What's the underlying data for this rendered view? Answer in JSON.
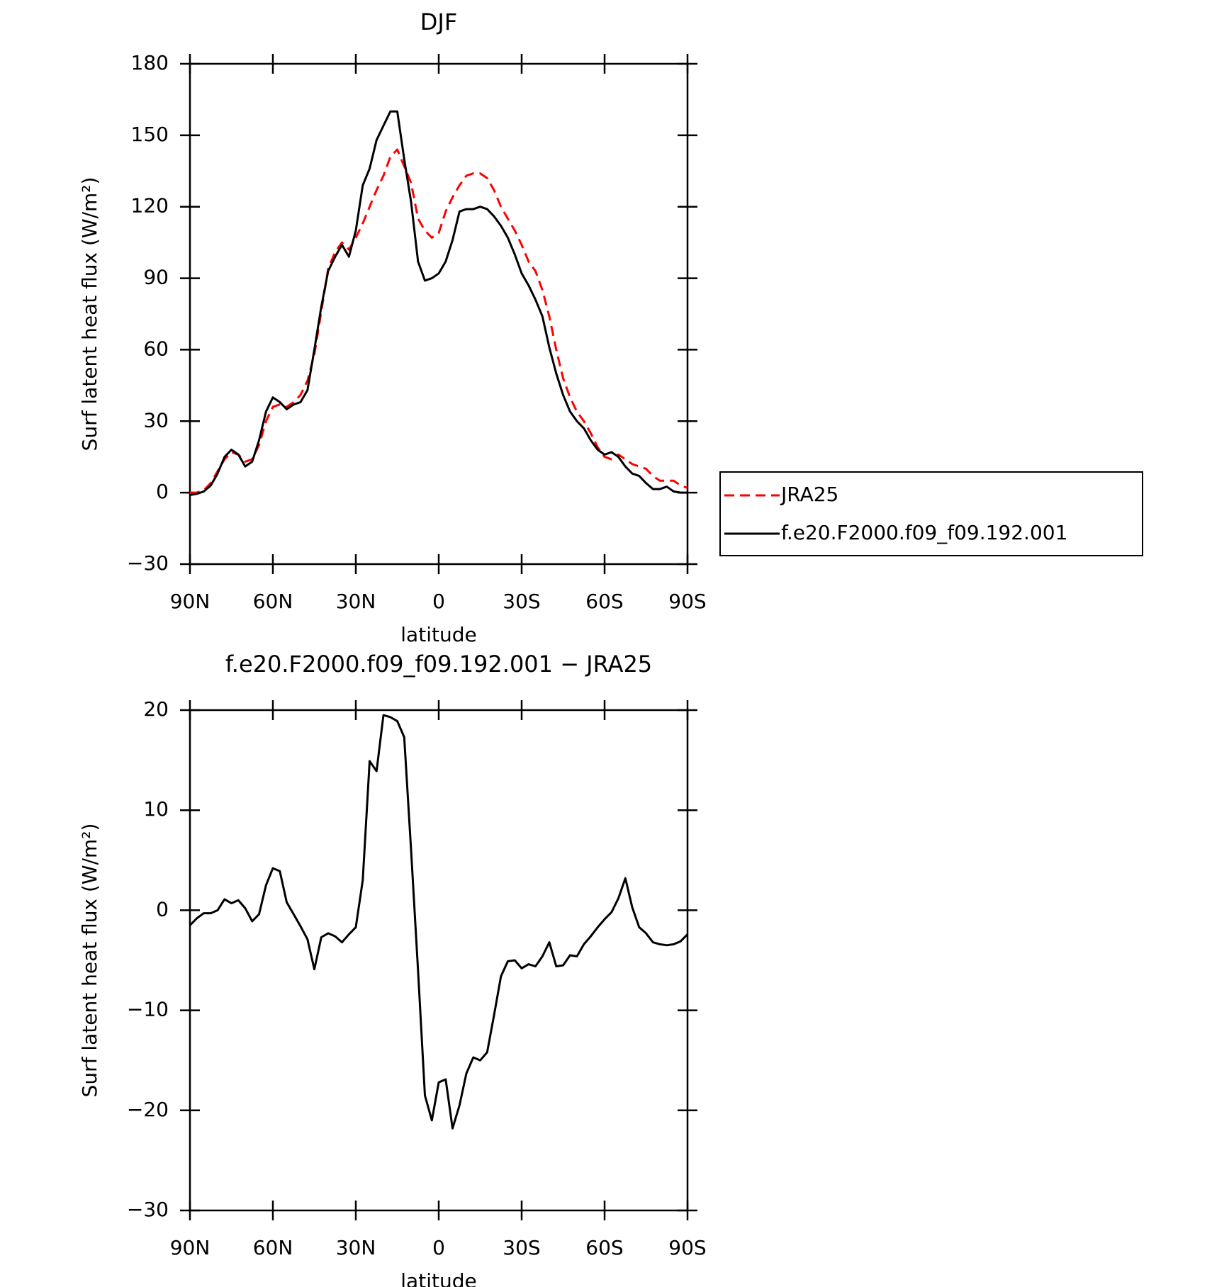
{
  "chart_data": [
    {
      "type": "line",
      "title": "DJF",
      "xlabel": "latitude",
      "ylabel": "Surf latent heat flux (W/m²)",
      "x": [
        90,
        87.5,
        85,
        82.5,
        80,
        77.5,
        75,
        72.5,
        70,
        67.5,
        65,
        62.5,
        60,
        57.5,
        55,
        52.5,
        50,
        47.5,
        45,
        42.5,
        40,
        37.5,
        35,
        32.5,
        30,
        27.5,
        25,
        22.5,
        20,
        17.5,
        15,
        12.5,
        10,
        7.5,
        5,
        2.5,
        0,
        -2.5,
        -5,
        -7.5,
        -10,
        -12.5,
        -15,
        -17.5,
        -20,
        -22.5,
        -25,
        -27.5,
        -30,
        -32.5,
        -35,
        -37.5,
        -40,
        -42.5,
        -45,
        -47.5,
        -50,
        -52.5,
        -55,
        -57.5,
        -60,
        -62.5,
        -65,
        -67.5,
        -70,
        -72.5,
        -75,
        -77.5,
        -80,
        -82.5,
        -85,
        -87.5,
        -90
      ],
      "series": [
        {
          "name": "JRA25",
          "color": "#ff0000",
          "style": "dashed",
          "values": [
            0,
            0,
            1,
            4,
            9,
            14,
            17,
            16,
            13,
            14,
            20,
            30,
            36,
            37,
            36,
            38,
            41,
            47,
            58,
            76,
            94,
            101,
            105,
            102,
            107,
            113,
            120,
            127,
            133,
            141,
            144,
            137,
            130,
            115,
            110,
            107,
            109,
            118,
            124,
            129,
            133,
            134,
            134,
            132,
            127,
            120,
            115,
            110,
            104,
            97,
            93,
            85,
            74,
            60,
            48,
            40,
            34,
            30,
            25,
            19,
            15,
            14,
            16,
            14,
            12,
            11,
            10,
            7,
            5,
            5,
            5,
            3,
            2
          ]
        },
        {
          "name": "f.e20.F2000.f09_f09.192.001",
          "color": "#000000",
          "style": "solid",
          "values": [
            -1,
            -0.5,
            0.5,
            3,
            8,
            15,
            18,
            16,
            11,
            13,
            22,
            34,
            40,
            38,
            35,
            37,
            38,
            43,
            60,
            78,
            93,
            99,
            104,
            99,
            110,
            129,
            136,
            148,
            154,
            160,
            160,
            140,
            122,
            97,
            89,
            90,
            92,
            97,
            106,
            118,
            119,
            119,
            120,
            119,
            116,
            112,
            107,
            100,
            92,
            87,
            81,
            74,
            61,
            50,
            41,
            34,
            30,
            27,
            22,
            18,
            16,
            17,
            15,
            11,
            8,
            7,
            4,
            1.5,
            1.5,
            2.5,
            0.5,
            0,
            0
          ]
        }
      ],
      "xlim": [
        90,
        -90
      ],
      "xticks": [
        {
          "value": 90,
          "label": "90N"
        },
        {
          "value": 60,
          "label": "60N"
        },
        {
          "value": 30,
          "label": "30N"
        },
        0,
        {
          "value": -30,
          "label": "30S"
        },
        {
          "value": -60,
          "label": "60S"
        },
        {
          "value": -90,
          "label": "90S"
        }
      ],
      "ylim": [
        -30,
        180
      ],
      "yticks": [
        {
          "value": -30,
          "label": "−30"
        },
        0,
        30,
        60,
        90,
        120,
        150,
        180
      ],
      "legend": "right"
    },
    {
      "type": "line",
      "title": "f.e20.F2000.f09_f09.192.001 − JRA25",
      "xlabel": "latitude",
      "ylabel": "Surf latent heat flux (W/m²)",
      "x": [
        90,
        87.5,
        85,
        82.5,
        80,
        77.5,
        75,
        72.5,
        70,
        67.5,
        65,
        62.5,
        60,
        57.5,
        55,
        52.5,
        50,
        47.5,
        45,
        42.5,
        40,
        37.5,
        35,
        32.5,
        30,
        27.5,
        25,
        22.5,
        20,
        17.5,
        15,
        12.5,
        10,
        7.5,
        5,
        2.5,
        0,
        -2.5,
        -5,
        -7.5,
        -10,
        -12.5,
        -15,
        -17.5,
        -20,
        -22.5,
        -25,
        -27.5,
        -30,
        -32.5,
        -35,
        -37.5,
        -40,
        -42.5,
        -45,
        -47.5,
        -50,
        -52.5,
        -55,
        -57.5,
        -60,
        -62.5,
        -65,
        -67.5,
        -70,
        -72.5,
        -75,
        -77.5,
        -80,
        -82.5,
        -85,
        -87.5,
        -90
      ],
      "series": [
        {
          "color": "#000000",
          "style": "solid",
          "values": [
            -1.5,
            -0.8,
            -0.3,
            -0.3,
            0,
            1.1,
            0.7,
            1,
            0.2,
            -1.1,
            -0.4,
            2.5,
            4.2,
            3.9,
            0.8,
            -0.4,
            -1.6,
            -2.9,
            -5.9,
            -2.7,
            -2.3,
            -2.6,
            -3.2,
            -2.4,
            -1.7,
            3,
            14.9,
            13.9,
            19.5,
            19.3,
            18.9,
            17.3,
            6,
            -6,
            -18.5,
            -21,
            -17.2,
            -16.9,
            -21.8,
            -19.5,
            -16.3,
            -14.7,
            -15,
            -14.2,
            -10.5,
            -6.6,
            -5.1,
            -5,
            -5.8,
            -5.4,
            -5.6,
            -4.6,
            -3.2,
            -5.6,
            -5.5,
            -4.5,
            -4.6,
            -3.4,
            -2.6,
            -1.7,
            -0.9,
            -0.2,
            1.2,
            3.2,
            0.3,
            -1.7,
            -2.3,
            -3.2,
            -3.4,
            -3.5,
            -3.4,
            -3.1,
            -2.4
          ]
        }
      ],
      "xlim": [
        90,
        -90
      ],
      "xticks": [
        {
          "value": 90,
          "label": "90N"
        },
        {
          "value": 60,
          "label": "60N"
        },
        {
          "value": 30,
          "label": "30N"
        },
        0,
        {
          "value": -30,
          "label": "30S"
        },
        {
          "value": -60,
          "label": "60S"
        },
        {
          "value": -90,
          "label": "90S"
        }
      ],
      "ylim": [
        -30,
        20
      ],
      "yticks": [
        {
          "value": -30,
          "label": "−30"
        },
        {
          "value": -20,
          "label": "−20"
        },
        {
          "value": -10,
          "label": "−10"
        },
        0,
        10,
        20
      ]
    }
  ]
}
